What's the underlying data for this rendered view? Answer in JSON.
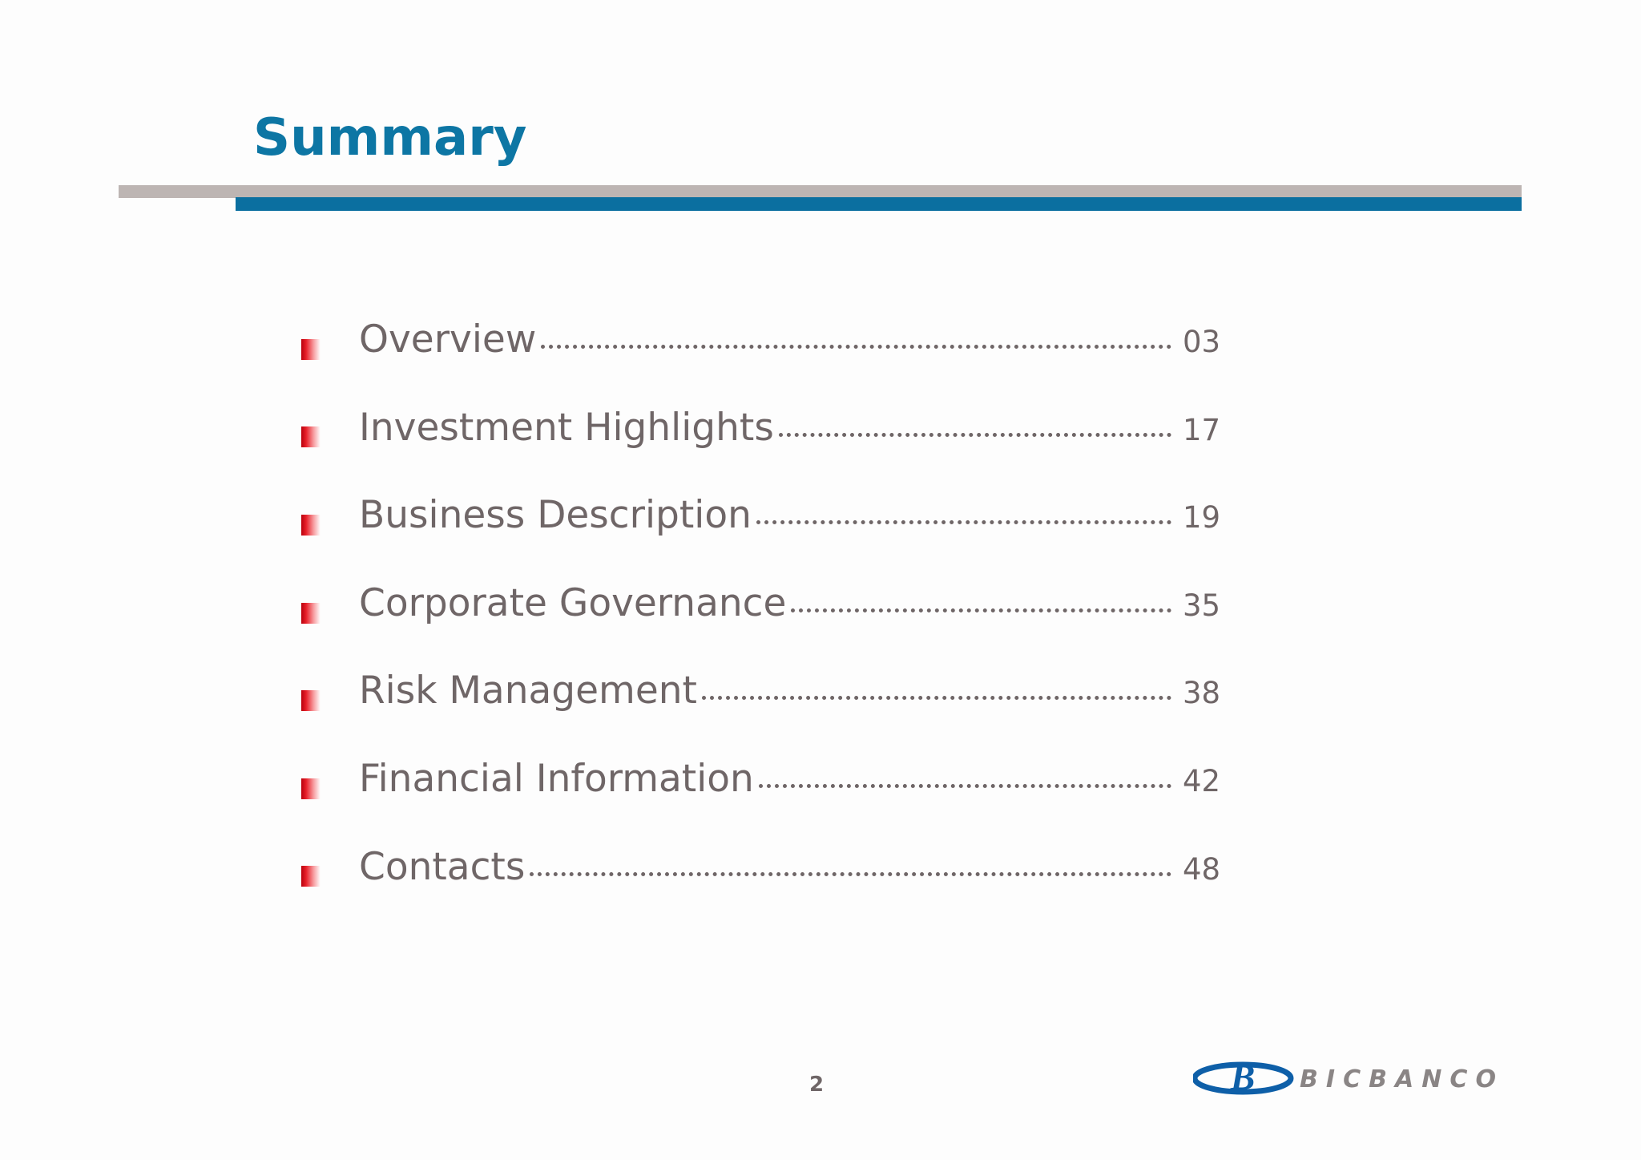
{
  "header": {
    "title": "Summary"
  },
  "toc": [
    {
      "label": "Overview",
      "page": "03"
    },
    {
      "label": "Investment Highlights",
      "page": "17"
    },
    {
      "label": "Business Description",
      "page": "19"
    },
    {
      "label": "Corporate Governance",
      "page": "35"
    },
    {
      "label": "Risk Management",
      "page": "38"
    },
    {
      "label": "Financial Information",
      "page": "42"
    },
    {
      "label": "Contacts",
      "page": "48"
    }
  ],
  "footer": {
    "page_number": "2",
    "logo": {
      "mark": "B",
      "text": "BICBANCO"
    }
  }
}
